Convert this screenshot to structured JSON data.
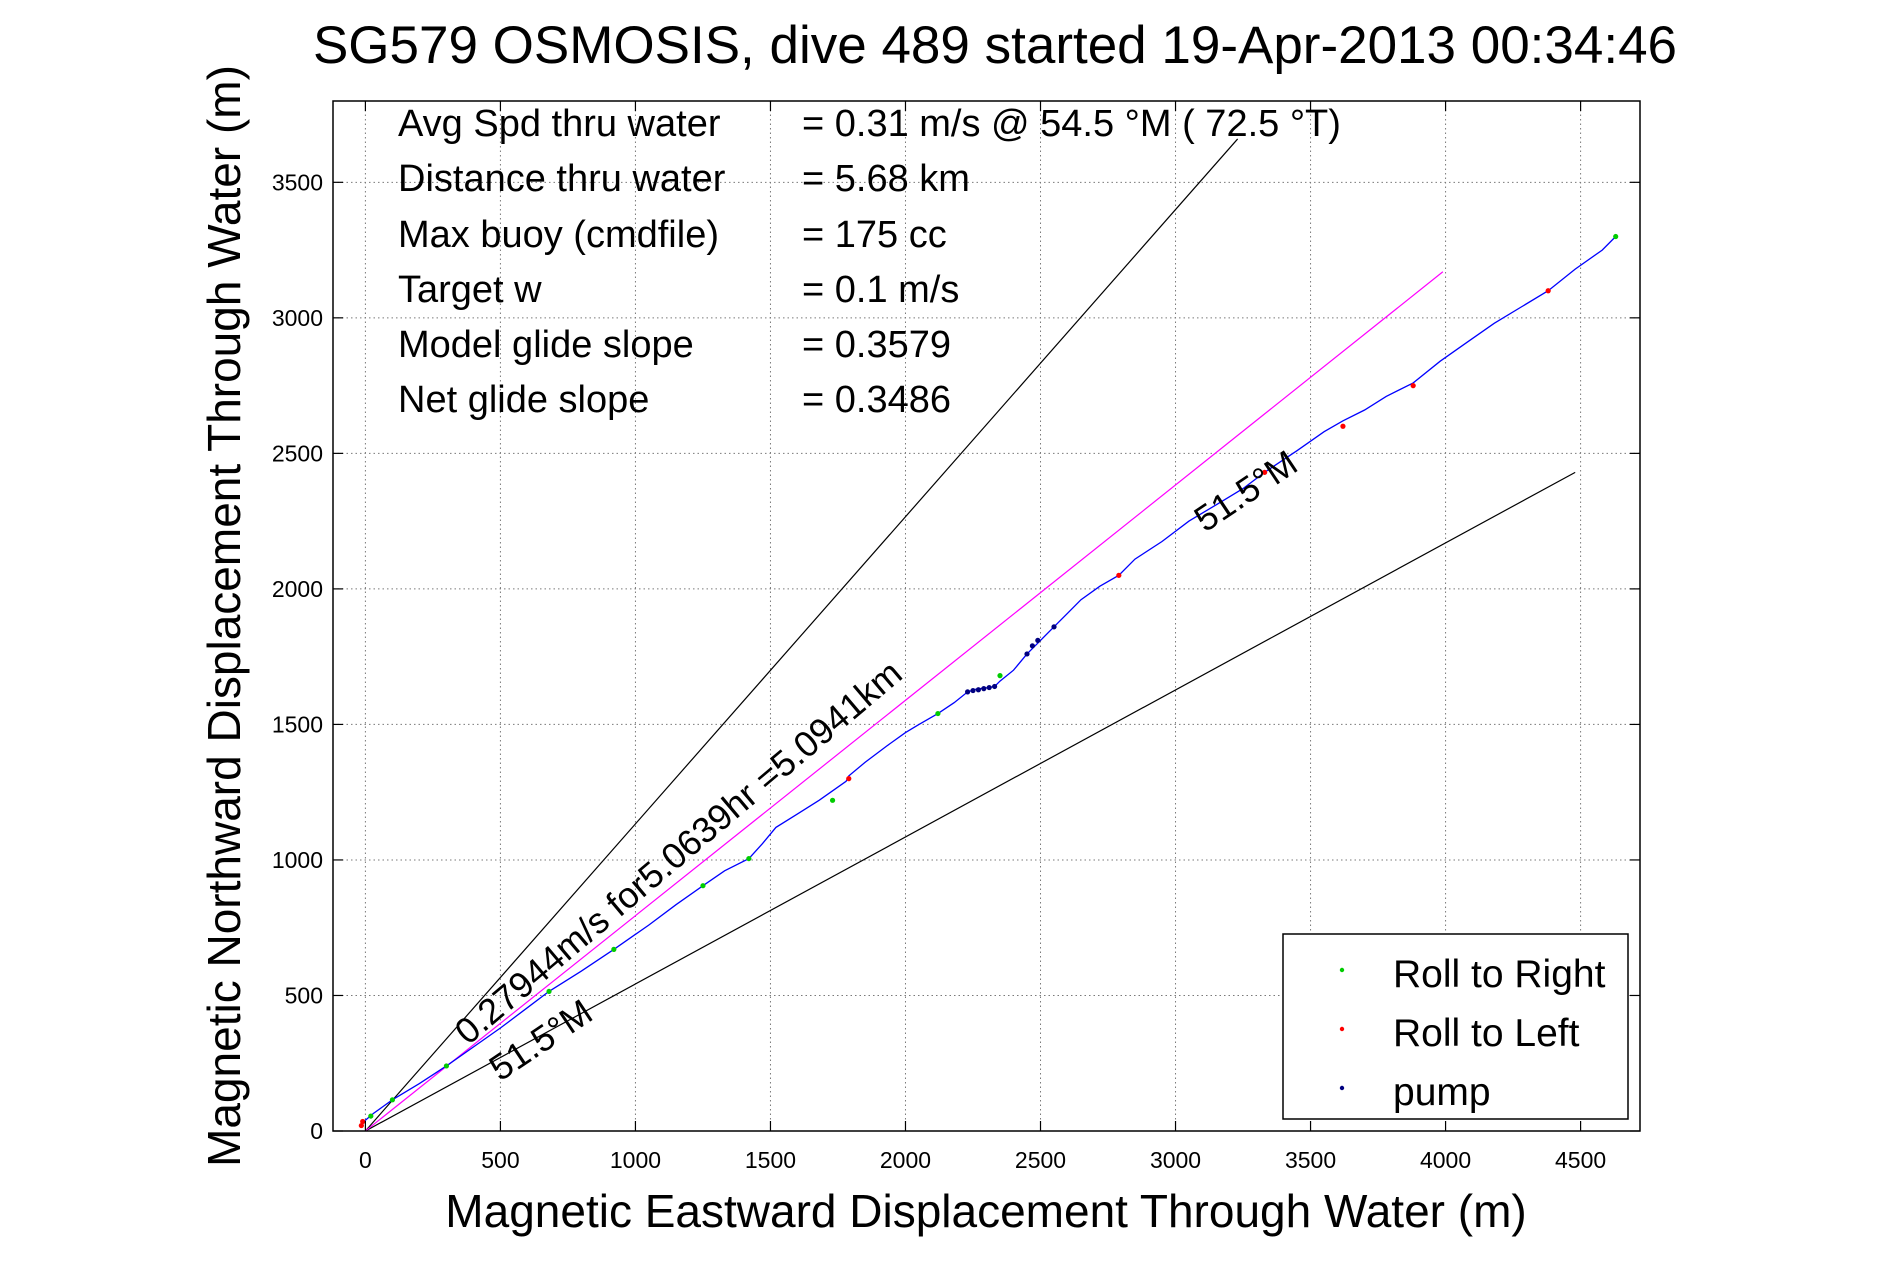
{
  "chart_data": {
    "type": "scatter",
    "title": "SG579 OSMOSIS, dive 489 started 19-Apr-2013 00:34:46",
    "xlabel": "Magnetic Eastward Displacement Through Water (m)",
    "ylabel": "Magnetic Northward Displacement Through Water (m)",
    "xlim": [
      -120,
      4720
    ],
    "ylim": [
      0,
      3800
    ],
    "xticks": [
      0,
      500,
      1000,
      1500,
      2000,
      2500,
      3000,
      3500,
      4000,
      4500
    ],
    "yticks": [
      0,
      500,
      1000,
      1500,
      2000,
      2500,
      3000,
      3500
    ],
    "xtick_labels": [
      "0",
      "500",
      "1000",
      "1500",
      "2000",
      "2500",
      "3000",
      "3500",
      "4000",
      "4500"
    ],
    "ytick_labels": [
      "0",
      "500",
      "1000",
      "1500",
      "2000",
      "2500",
      "3000",
      "3500"
    ],
    "grid": true,
    "legend_position": "bottom-right",
    "stats": [
      {
        "label": "Avg Spd thru water",
        "value": "=  0.31 m/s @  54.5 °M ( 72.5 °T)"
      },
      {
        "label": "Distance thru water",
        "value": "=  5.68 km"
      },
      {
        "label": "Max buoy (cmdfile)",
        "value": "= 175 cc"
      },
      {
        "label": "Target w",
        "value": "= 0.1 m/s"
      },
      {
        "label": "Model glide slope",
        "value": "= 0.3579"
      },
      {
        "label": "Net glide slope",
        "value": "= 0.3486"
      }
    ],
    "annotations": {
      "speed_line": "0.27944m/s for5.0639hr =5.0941km",
      "heading_upper": "51.5°M",
      "heading_lower": "51.5°M"
    },
    "reference_lines": [
      {
        "x": [
          0,
          3230
        ],
        "y": [
          0,
          3660
        ],
        "color": "#000000"
      },
      {
        "x": [
          0,
          4480
        ],
        "y": [
          0,
          2430
        ],
        "color": "#000000"
      },
      {
        "x": [
          0,
          3990
        ],
        "y": [
          0,
          3170
        ],
        "color": "#ff00ff"
      }
    ],
    "track": {
      "color": "#0000ff",
      "x": [
        -15,
        0,
        30,
        100,
        200,
        300,
        400,
        500,
        600,
        680,
        800,
        920,
        1050,
        1150,
        1250,
        1330,
        1420,
        1470,
        1520,
        1600,
        1680,
        1730,
        1780,
        1790,
        1850,
        1930,
        2000,
        2050,
        2120,
        2180,
        2230,
        2260,
        2300,
        2330,
        2350,
        2400,
        2450,
        2500,
        2550,
        2600,
        2650,
        2720,
        2790,
        2850,
        2950,
        3050,
        3150,
        3250,
        3330,
        3450,
        3550,
        3620,
        3700,
        3780,
        3880,
        3980,
        4080,
        4180,
        4280,
        4380,
        4480,
        4580,
        4630
      ],
      "y": [
        25,
        40,
        65,
        115,
        175,
        240,
        310,
        380,
        455,
        515,
        590,
        670,
        760,
        835,
        905,
        960,
        1005,
        1060,
        1120,
        1170,
        1220,
        1255,
        1290,
        1310,
        1360,
        1420,
        1470,
        1500,
        1540,
        1580,
        1620,
        1630,
        1635,
        1640,
        1660,
        1700,
        1760,
        1810,
        1860,
        1910,
        1960,
        2010,
        2050,
        2110,
        2175,
        2250,
        2310,
        2370,
        2430,
        2510,
        2580,
        2620,
        2660,
        2710,
        2760,
        2840,
        2910,
        2980,
        3040,
        3100,
        3180,
        3250,
        3300
      ]
    },
    "series": [
      {
        "name": "Roll to Right",
        "color": "#00cc00",
        "x": [
          20,
          100,
          300,
          680,
          920,
          1250,
          1420,
          1730,
          2120,
          2350,
          4630
        ],
        "y": [
          55,
          115,
          240,
          515,
          670,
          905,
          1005,
          1220,
          1540,
          1680,
          3300
        ]
      },
      {
        "name": "Roll to Left",
        "color": "#ff0000",
        "x": [
          -15,
          -10,
          1790,
          2790,
          3330,
          3620,
          3880,
          4380
        ],
        "y": [
          20,
          35,
          1300,
          2050,
          2430,
          2600,
          2750,
          3100
        ]
      },
      {
        "name": "pump",
        "color": "#000080",
        "x": [
          2230,
          2250,
          2270,
          2290,
          2310,
          2330,
          2450,
          2470,
          2490,
          2550
        ],
        "y": [
          1620,
          1625,
          1628,
          1632,
          1636,
          1640,
          1760,
          1790,
          1810,
          1860
        ]
      }
    ]
  }
}
